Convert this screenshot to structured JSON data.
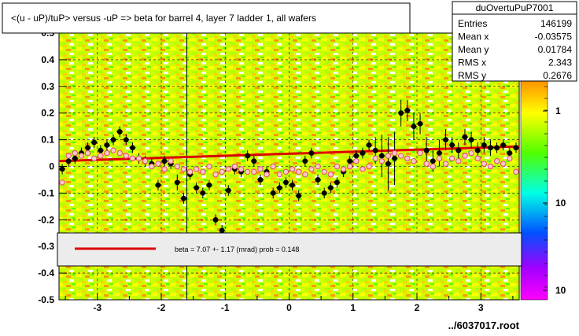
{
  "chart_data": {
    "type": "scatter",
    "title": "<(u - uP)/tuP> versus  -uP => beta for barrel 4, layer 7 ladder 1, all wafers",
    "xlabel": "../6037017.root",
    "ylabel": "",
    "xlim": [
      -3.6,
      3.6
    ],
    "ylim": [
      -0.5,
      0.5
    ],
    "x_ticks": [
      "-3",
      "-2",
      "-1",
      "0",
      "1",
      "2",
      "3"
    ],
    "x_tick_values": [
      -3,
      -2,
      -1,
      0,
      1,
      2,
      3
    ],
    "y_ticks": [
      "-0.5",
      "-0.4",
      "-0.3",
      "-0.2",
      "-0.1",
      "0",
      "0.1",
      "0.2",
      "0.3",
      "0.4",
      "0.5"
    ],
    "y_tick_values": [
      -0.5,
      -0.4,
      -0.3,
      -0.2,
      -0.1,
      0,
      0.1,
      0.2,
      0.3,
      0.4,
      0.5
    ],
    "grid": true,
    "colorbar": {
      "labels": [
        "1",
        "10",
        "10"
      ],
      "label_values": [
        1,
        -1,
        -2
      ],
      "colors": [
        "#ff1e00",
        "#ff7800",
        "#ffc800",
        "#ffff00",
        "#b4ff00",
        "#50ff00",
        "#00ff78",
        "#00ffe6",
        "#00b4ff",
        "#0050ff",
        "#3c00ff",
        "#a000ff",
        "#ff00ff"
      ]
    },
    "stats_box": {
      "name": "duOvertuPuP7001",
      "rows": [
        {
          "label": "Entries",
          "value": "146199"
        },
        {
          "label": "Mean x",
          "value": "-0.03575"
        },
        {
          "label": "Mean y",
          "value": "0.01784"
        },
        {
          "label": "RMS x",
          "value": "2.343"
        },
        {
          "label": "RMS y",
          "value": "0.2676"
        }
      ]
    },
    "legend": {
      "placement": "lower-center",
      "entry": "beta =    7.07 +-  1.17 (mrad) prob = 0.148"
    },
    "fit_line": {
      "x": [
        -3.6,
        3.6
      ],
      "y": [
        0.02,
        0.075
      ],
      "color": "#dd0000"
    },
    "series": [
      {
        "kind": "profile-black",
        "x": [
          -3.55,
          -3.45,
          -3.35,
          -3.25,
          -3.15,
          -3.05,
          -2.95,
          -2.85,
          -2.75,
          -2.65,
          -2.55,
          -2.45,
          -2.35,
          -2.25,
          -2.15,
          -2.05,
          -1.95,
          -1.85,
          -1.75,
          -1.65,
          -1.55,
          -1.45,
          -1.35,
          -1.25,
          -1.15,
          -1.05,
          -0.95,
          -0.85,
          -0.75,
          -0.65,
          -0.55,
          -0.45,
          -0.35,
          -0.25,
          -0.15,
          -0.05,
          0.05,
          0.15,
          0.25,
          0.35,
          0.45,
          0.55,
          0.65,
          0.75,
          0.85,
          0.95,
          1.05,
          1.15,
          1.25,
          1.35,
          1.45,
          1.55,
          1.65,
          1.75,
          1.85,
          1.95,
          2.05,
          2.15,
          2.25,
          2.35,
          2.45,
          2.55,
          2.65,
          2.75,
          2.85,
          2.95,
          3.05,
          3.15,
          3.25,
          3.35,
          3.45,
          3.55
        ],
        "y": [
          -0.01,
          0.02,
          0.03,
          0.05,
          0.07,
          0.09,
          0.06,
          0.08,
          0.1,
          0.13,
          0.1,
          0.07,
          0.03,
          0.02,
          0.01,
          -0.07,
          0.02,
          0.01,
          -0.06,
          -0.12,
          -0.03,
          -0.08,
          -0.1,
          -0.07,
          -0.2,
          -0.24,
          -0.09,
          -0.01,
          -0.02,
          0.04,
          0.02,
          -0.05,
          -0.02,
          -0.1,
          -0.08,
          -0.06,
          -0.07,
          -0.11,
          0.02,
          0.05,
          -0.05,
          -0.1,
          -0.08,
          -0.06,
          -0.02,
          0.02,
          0.04,
          0.05,
          0.08,
          0.06,
          0.04,
          0.01,
          0.03,
          0.2,
          0.21,
          0.15,
          0.16,
          0.06,
          0.02,
          0.05,
          0.1,
          0.08,
          0.06,
          0.11,
          0.1,
          0.06,
          0.08,
          0.07,
          0.07,
          0.08,
          0.05,
          0.07
        ],
        "err": [
          0.02,
          0.02,
          0.02,
          0.02,
          0.02,
          0.02,
          0.02,
          0.02,
          0.02,
          0.02,
          0.02,
          0.02,
          0.02,
          0.02,
          0.02,
          0.02,
          0.02,
          0.02,
          0.03,
          0.02,
          0.02,
          0.02,
          0.02,
          0.02,
          0.02,
          0.02,
          0.02,
          0.02,
          0.02,
          0.02,
          0.02,
          0.02,
          0.02,
          0.02,
          0.02,
          0.02,
          0.02,
          0.02,
          0.02,
          0.02,
          0.02,
          0.02,
          0.02,
          0.02,
          0.02,
          0.02,
          0.02,
          0.02,
          0.02,
          0.05,
          0.08,
          0.1,
          0.1,
          0.05,
          0.04,
          0.05,
          0.04,
          0.05,
          0.04,
          0.05,
          0.04,
          0.03,
          0.03,
          0.03,
          0.03,
          0.03,
          0.03,
          0.03,
          0.02,
          0.02,
          0.02,
          0.02
        ]
      },
      {
        "kind": "profile-pink",
        "x": [
          -3.55,
          -3.45,
          -3.35,
          -3.25,
          -3.15,
          -3.05,
          -2.95,
          -2.85,
          -2.75,
          -2.65,
          -2.55,
          -2.45,
          -2.35,
          -2.25,
          -2.15,
          -2.05,
          -1.95,
          -1.85,
          -1.75,
          -1.65,
          -1.55,
          -1.45,
          -1.35,
          -1.25,
          -1.15,
          -1.05,
          -0.95,
          -0.85,
          -0.75,
          -0.65,
          -0.55,
          -0.45,
          -0.35,
          -0.25,
          -0.15,
          -0.05,
          0.05,
          0.15,
          0.25,
          0.35,
          0.45,
          0.55,
          0.65,
          0.75,
          0.85,
          0.95,
          1.05,
          1.15,
          1.25,
          1.35,
          1.45,
          1.55,
          1.65,
          1.75,
          1.85,
          1.95,
          2.05,
          2.15,
          2.25,
          2.35,
          2.45,
          2.55,
          2.65,
          2.75,
          2.85,
          2.95,
          3.05,
          3.15,
          3.25,
          3.35,
          3.45,
          3.55
        ],
        "y": [
          -0.06,
          0.04,
          0.05,
          0.04,
          0.05,
          0.03,
          0.04,
          0.05,
          0.06,
          0.05,
          0.04,
          0.03,
          0.03,
          0.02,
          0.0,
          0.01,
          -0.01,
          0.02,
          0.0,
          -0.01,
          -0.02,
          -0.01,
          -0.02,
          0.0,
          -0.03,
          -0.02,
          -0.01,
          0.0,
          -0.01,
          -0.02,
          -0.02,
          -0.01,
          -0.03,
          0.0,
          -0.03,
          -0.02,
          -0.01,
          -0.02,
          -0.03,
          -0.01,
          0.0,
          -0.02,
          -0.03,
          0.0,
          -0.01,
          0.0,
          0.02,
          -0.01,
          0.0,
          0.03,
          0.02,
          0.04,
          0.05,
          0.04,
          0.03,
          0.02,
          0.05,
          0.01,
          0.0,
          0.03,
          0.01,
          0.03,
          0.02,
          0.04,
          0.05,
          0.03,
          0.01,
          0.0,
          0.02,
          0.01,
          0.03,
          -0.02
        ]
      }
    ]
  }
}
